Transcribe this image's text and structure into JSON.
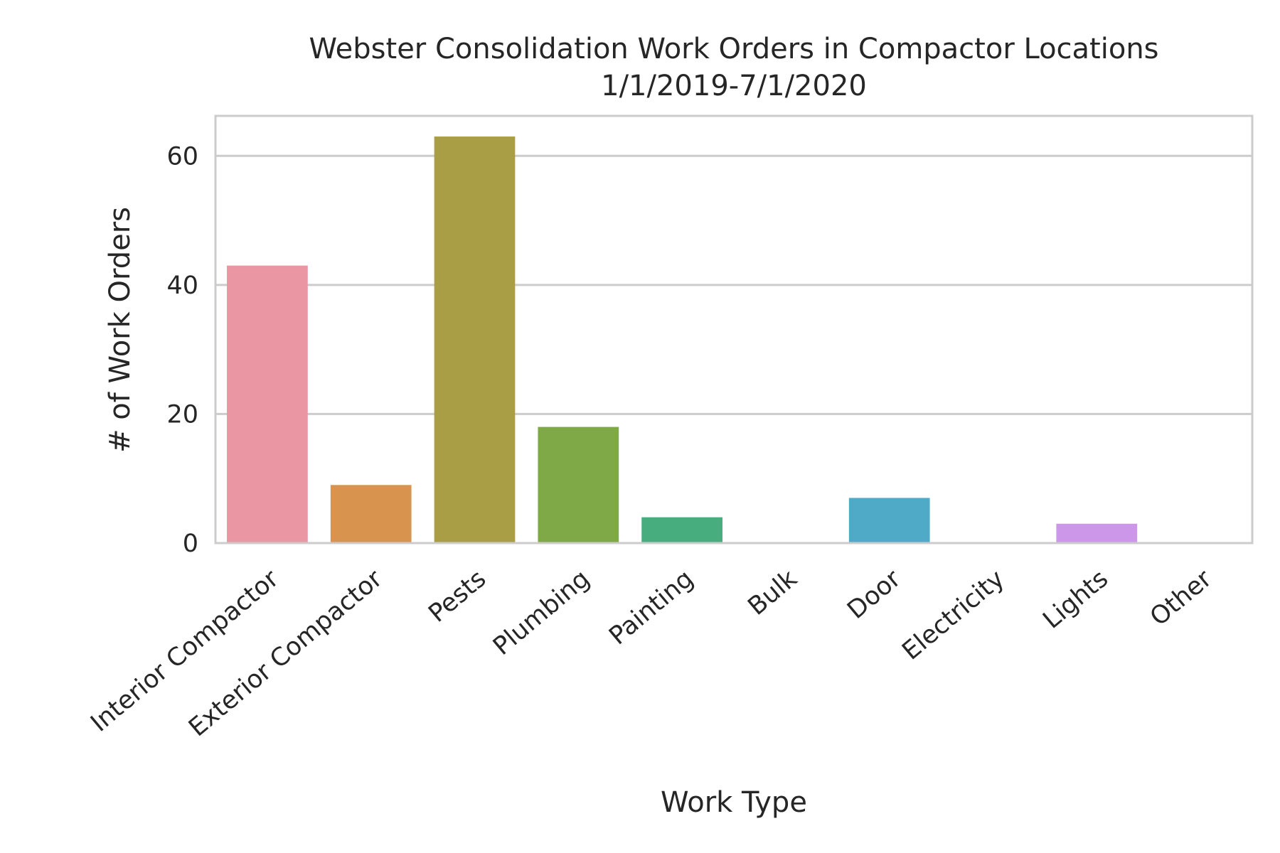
{
  "chart_data": {
    "type": "bar",
    "title_line1": "Webster Consolidation Work Orders in Compactor Locations",
    "title_line2": "1/1/2019-7/1/2020",
    "xlabel": "Work Type",
    "ylabel": "# of Work Orders",
    "categories": [
      "Interior Compactor",
      "Exterior Compactor",
      "Pests",
      "Plumbing",
      "Painting",
      "Bulk",
      "Door",
      "Electricity",
      "Lights",
      "Other"
    ],
    "values": [
      43,
      9,
      63,
      18,
      4,
      0,
      7,
      0,
      3,
      0
    ],
    "colors": [
      "#ea96a3",
      "#d8944e",
      "#a99d46",
      "#7fa946",
      "#48ad7e",
      "#4baea0",
      "#4eaac7",
      "#8ca2e6",
      "#cc97e8",
      "#e891cf"
    ],
    "yticks": [
      0,
      20,
      40,
      60
    ],
    "ylim": [
      0,
      66.2
    ],
    "grid": true,
    "legend": "none"
  }
}
